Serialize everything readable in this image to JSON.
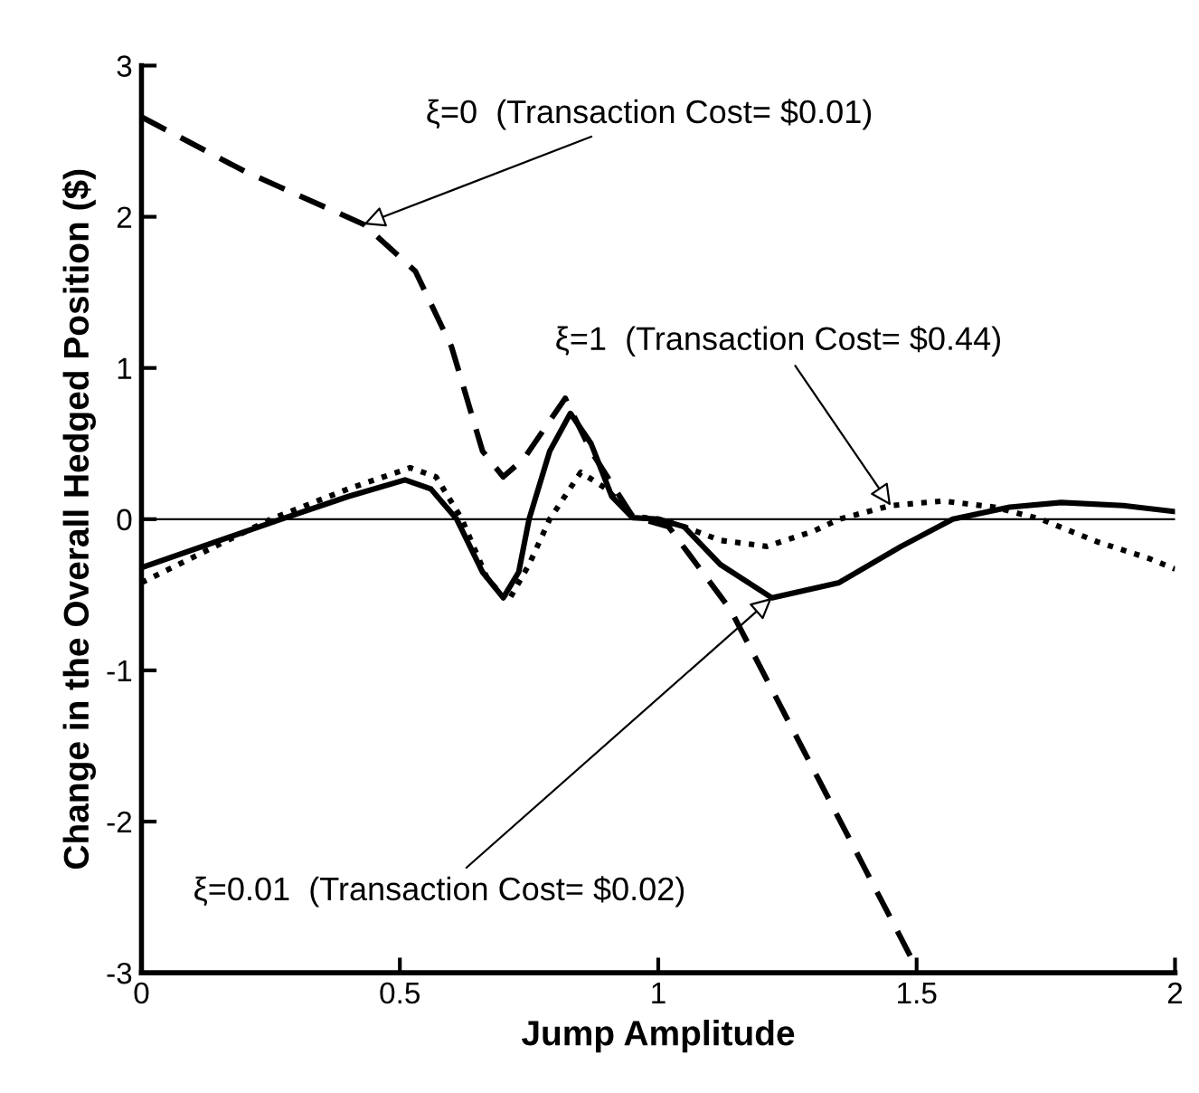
{
  "chart_data": {
    "type": "line",
    "xlabel": "Jump Amplitude",
    "ylabel": "Change in the Overall Hedged Position ($)",
    "xlim": [
      0,
      2
    ],
    "ylim": [
      -3,
      3
    ],
    "xticks": [
      0,
      0.5,
      1,
      1.5,
      2
    ],
    "yticks": [
      -3,
      -2,
      -1,
      0,
      1,
      2,
      3
    ],
    "grid": false,
    "ref_lines": [
      {
        "axis": "y",
        "value": 0,
        "color": "#000000",
        "line_style": "solid"
      }
    ],
    "series": [
      {
        "color": "#000000",
        "line_style": "dashed",
        "x": [
          0,
          0.2,
          0.43,
          0.53,
          0.6,
          0.66,
          0.7,
          0.74,
          0.82,
          0.87,
          0.95,
          1.02,
          1.14,
          1.5
        ],
        "values": [
          2.66,
          2.3,
          1.95,
          1.64,
          1.14,
          0.45,
          0.28,
          0.4,
          0.8,
          0.45,
          0.02,
          -0.05,
          -0.6,
          -2.97
        ]
      },
      {
        "color": "#000000",
        "line_style": "solid",
        "x": [
          0,
          0.27,
          0.4,
          0.51,
          0.56,
          0.61,
          0.66,
          0.7,
          0.73,
          0.75,
          0.79,
          0.83,
          0.87,
          0.91,
          0.95,
          1.0,
          1.05,
          1.12,
          1.22,
          1.35,
          1.47,
          1.57,
          1.68,
          1.78,
          1.9,
          2.0
        ],
        "values": [
          -0.32,
          0.0,
          0.15,
          0.26,
          0.2,
          0.0,
          -0.35,
          -0.52,
          -0.35,
          0.0,
          0.45,
          0.7,
          0.5,
          0.15,
          0.01,
          0.0,
          -0.05,
          -0.3,
          -0.52,
          -0.42,
          -0.18,
          0.0,
          0.08,
          0.11,
          0.09,
          0.05
        ]
      },
      {
        "color": "#000000",
        "line_style": "dotted",
        "x": [
          0,
          0.25,
          0.4,
          0.52,
          0.57,
          0.62,
          0.67,
          0.71,
          0.75,
          0.79,
          0.85,
          0.9,
          0.95,
          1.0,
          1.05,
          1.12,
          1.21,
          1.3,
          1.35,
          1.45,
          1.55,
          1.65,
          1.74,
          1.85,
          1.95,
          2.0
        ],
        "values": [
          -0.42,
          0.0,
          0.2,
          0.34,
          0.28,
          0.0,
          -0.4,
          -0.54,
          -0.3,
          0.0,
          0.31,
          0.2,
          0.02,
          0.0,
          -0.05,
          -0.14,
          -0.18,
          -0.08,
          0.0,
          0.09,
          0.12,
          0.08,
          0.0,
          -0.15,
          -0.26,
          -0.33
        ]
      }
    ],
    "annotations": [
      {
        "text": "ξ=0  (Transaction Cost= $0.01)",
        "x": 0.43,
        "y": 1.95
      },
      {
        "text": "ξ=1  (Transaction Cost= $0.44)",
        "x": 1.45,
        "y": 0.09
      },
      {
        "text": "ξ=0.01  (Transaction Cost= $0.02)",
        "x": 1.22,
        "y": -0.52
      }
    ]
  }
}
